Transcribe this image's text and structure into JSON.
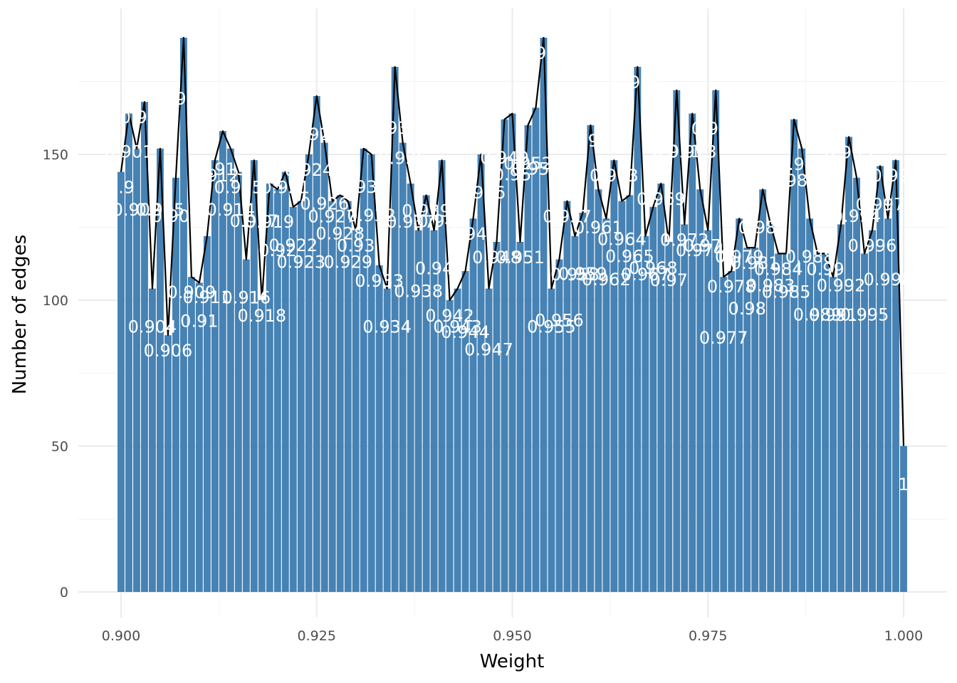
{
  "chart_data": {
    "type": "bar",
    "xlabel": "Weight",
    "ylabel": "Number of edges",
    "xlim": [
      0.8955,
      1.0045
    ],
    "ylim": [
      -8,
      200
    ],
    "x_ticks": [
      0.9,
      0.925,
      0.95,
      0.975,
      1.0
    ],
    "x_tick_labels": [
      "0.900",
      "0.925",
      "0.950",
      "0.975",
      "1.000"
    ],
    "y_ticks": [
      0,
      50,
      100,
      150
    ],
    "y_tick_labels": [
      "0",
      "50",
      "100",
      "150"
    ],
    "grid": true,
    "legend": "none",
    "bar_color": "#4682b4",
    "line_color": "#000000",
    "label_color": "#ffffff",
    "x": [
      0.9,
      0.901,
      0.902,
      0.903,
      0.904,
      0.905,
      0.906,
      0.907,
      0.908,
      0.909,
      0.91,
      0.911,
      0.912,
      0.913,
      0.914,
      0.915,
      0.916,
      0.917,
      0.918,
      0.919,
      0.92,
      0.921,
      0.922,
      0.923,
      0.924,
      0.925,
      0.926,
      0.927,
      0.928,
      0.929,
      0.93,
      0.931,
      0.932,
      0.933,
      0.934,
      0.935,
      0.936,
      0.937,
      0.938,
      0.939,
      0.94,
      0.941,
      0.942,
      0.943,
      0.944,
      0.945,
      0.946,
      0.947,
      0.948,
      0.949,
      0.95,
      0.951,
      0.952,
      0.953,
      0.954,
      0.955,
      0.956,
      0.957,
      0.958,
      0.959,
      0.96,
      0.961,
      0.962,
      0.963,
      0.964,
      0.965,
      0.966,
      0.967,
      0.968,
      0.969,
      0.97,
      0.971,
      0.972,
      0.973,
      0.974,
      0.975,
      0.976,
      0.977,
      0.978,
      0.979,
      0.98,
      0.981,
      0.982,
      0.983,
      0.984,
      0.985,
      0.986,
      0.987,
      0.988,
      0.989,
      0.99,
      0.991,
      0.992,
      0.993,
      0.994,
      0.995,
      0.996,
      0.997,
      0.998,
      0.999,
      1.0
    ],
    "values": [
      144,
      164,
      152,
      168,
      104,
      152,
      88,
      142,
      190,
      108,
      106,
      122,
      148,
      158,
      152,
      144,
      114,
      148,
      100,
      140,
      138,
      144,
      132,
      134,
      150,
      170,
      154,
      134,
      136,
      134,
      124,
      152,
      150,
      112,
      104,
      180,
      154,
      140,
      124,
      136,
      124,
      148,
      100,
      104,
      110,
      128,
      150,
      104,
      120,
      162,
      164,
      120,
      160,
      166,
      190,
      104,
      114,
      134,
      122,
      130,
      160,
      138,
      128,
      148,
      134,
      136,
      180,
      122,
      132,
      140,
      120,
      172,
      126,
      164,
      138,
      124,
      172,
      108,
      110,
      128,
      118,
      118,
      138,
      126,
      116,
      116,
      162,
      152,
      128,
      116,
      116,
      108,
      126,
      156,
      142,
      116,
      124,
      146,
      128,
      148,
      50
    ],
    "labels": [
      "0.9",
      "0.901",
      "0.902",
      "0.903",
      "0.904",
      "0.905",
      "0.906",
      "0.907",
      "0.908",
      "0.909",
      "0.91",
      "0.911",
      "0.912",
      "0.913",
      "0.914",
      "0.915",
      "0.916",
      "0.917",
      "0.918",
      "0.919",
      "0.92",
      "0.921",
      "0.922",
      "0.923",
      "0.924",
      "0.925",
      "0.926",
      "0.927",
      "0.928",
      "0.929",
      "0.93",
      "0.931",
      "0.932",
      "0.933",
      "0.934",
      "0.935",
      "0.936",
      "0.937",
      "0.938",
      "0.939",
      "0.94",
      "0.941",
      "0.942",
      "0.943",
      "0.944",
      "0.945",
      "0.946",
      "0.947",
      "0.948",
      "0.949",
      "0.95",
      "0.951",
      "0.952",
      "0.953",
      "0.954",
      "0.955",
      "0.956",
      "0.957",
      "0.958",
      "0.959",
      "0.96",
      "0.961",
      "0.962",
      "0.963",
      "0.964",
      "0.965",
      "0.966",
      "0.967",
      "0.968",
      "0.969",
      "0.97",
      "0.971",
      "0.972",
      "0.973",
      "0.974",
      "0.975",
      "0.976",
      "0.977",
      "0.978",
      "0.979",
      "0.98",
      "0.981",
      "0.982",
      "0.983",
      "0.984",
      "0.985",
      "0.986",
      "0.987",
      "0.988",
      "0.989",
      "0.99",
      "0.991",
      "0.992",
      "0.993",
      "0.994",
      "0.995",
      "0.996",
      "0.997",
      "0.998",
      "0.999",
      "1"
    ]
  }
}
